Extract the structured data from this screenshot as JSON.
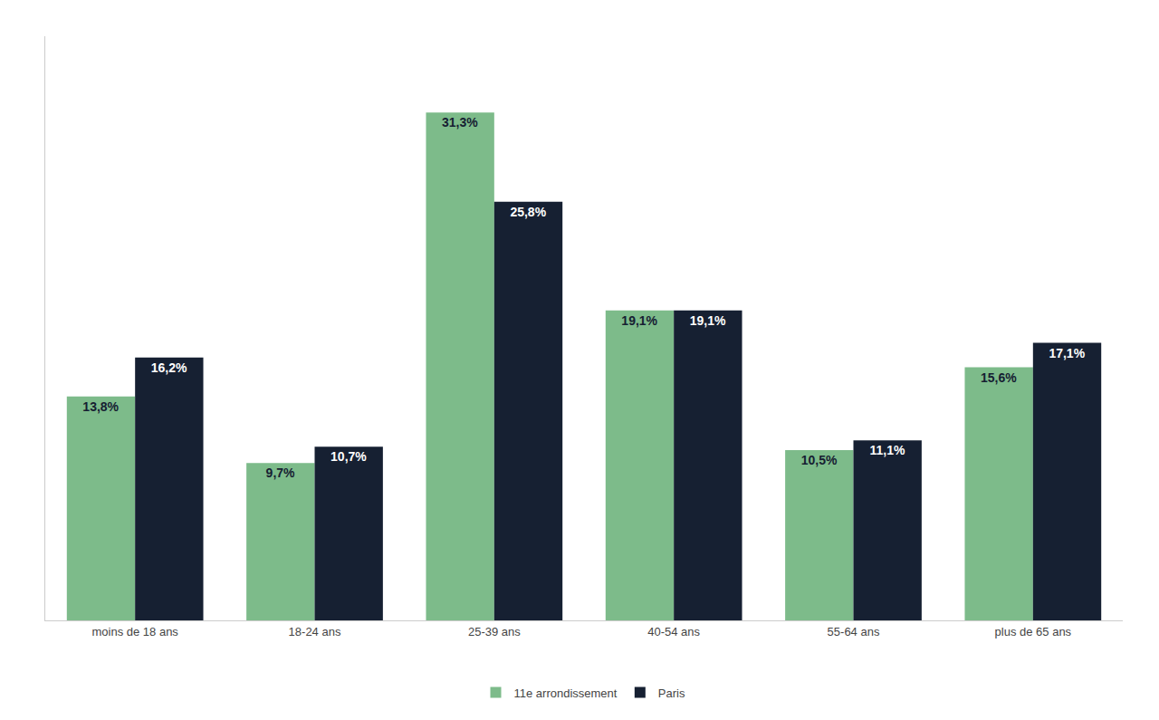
{
  "chart_data": {
    "type": "bar",
    "categories": [
      "moins de 18 ans",
      "18-24 ans",
      "25-39 ans",
      "40-54 ans",
      "55-64 ans",
      "plus de 65 ans"
    ],
    "series": [
      {
        "name": "11e arrondissement",
        "color": "#7DBB8A",
        "values": [
          13.8,
          9.7,
          31.3,
          19.1,
          10.5,
          15.6
        ],
        "value_labels": [
          "13,8%",
          "9,7%",
          "31,3%",
          "19,1%",
          "10,5%",
          "15,6%"
        ]
      },
      {
        "name": "Paris",
        "color": "#162032",
        "values": [
          16.2,
          10.7,
          25.8,
          19.1,
          11.1,
          17.1
        ],
        "value_labels": [
          "16,2%",
          "10,7%",
          "25,8%",
          "19,1%",
          "11,1%",
          "17,1%"
        ]
      }
    ],
    "ylim": [
      0,
      36
    ],
    "grid": false,
    "legend": "bottom",
    "data_labels": true,
    "tick_labels": "x"
  }
}
